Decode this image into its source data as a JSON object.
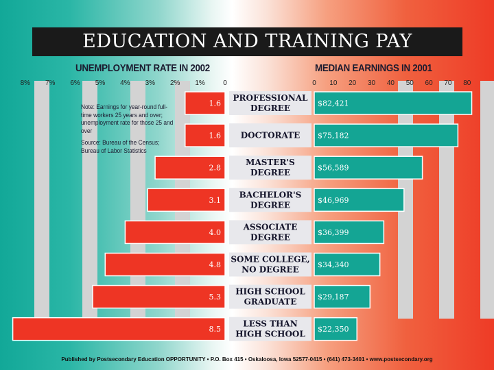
{
  "title": "EDUCATION AND TRAINING PAY",
  "note": {
    "text": "Note: Earnings for year-round full-time workers 25 years and over; unemployment rate for those 25 and over",
    "source": "Source: Bureau of the Census; Bureau of Labor Statistics"
  },
  "footer": "Published by Postsecondary Education OPPORTUNITY • P.O. Box 415 • Oskaloosa, Iowa 52577-0415 • (641) 473-3401 • www.postsecondary.org",
  "colors": {
    "teal": "#14a594",
    "red": "#ee3524",
    "label_box": "#e8e8ec"
  },
  "chart_data": {
    "type": "bar",
    "categories": [
      [
        "PROFESSIONAL",
        "DEGREE"
      ],
      [
        "DOCTORATE"
      ],
      [
        "MASTER'S",
        "DEGREE"
      ],
      [
        "BACHELOR'S",
        "DEGREE"
      ],
      [
        "ASSOCIATE",
        "DEGREE"
      ],
      [
        "SOME COLLEGE,",
        "NO DEGREE"
      ],
      [
        "HIGH SCHOOL",
        "GRADUATE"
      ],
      [
        "LESS THAN",
        "HIGH SCHOOL"
      ]
    ],
    "unemployment": {
      "title": "UNEMPLOYMENT RATE IN 2002",
      "ticks": [
        "8%",
        "7%",
        "6%",
        "5%",
        "4%",
        "3%",
        "2%",
        "1%",
        "0"
      ],
      "range": [
        0,
        8
      ],
      "values": [
        1.6,
        1.6,
        2.8,
        3.1,
        4.0,
        4.8,
        5.3,
        8.5
      ],
      "labels": [
        "1.6",
        "1.6",
        "2.8",
        "3.1",
        "4.0",
        "4.8",
        "5.3",
        "8.5"
      ]
    },
    "earnings": {
      "title": "MEDIAN EARNINGS IN 2001",
      "ticks": [
        "0",
        "10",
        "20",
        "30",
        "40",
        "50",
        "60",
        "70",
        "80"
      ],
      "range": [
        0,
        80
      ],
      "values": [
        82421,
        75182,
        56589,
        46969,
        36399,
        34340,
        29187,
        22350
      ],
      "labels": [
        "$82,421",
        "$75,182",
        "$56,589",
        "$46,969",
        "$36,399",
        "$34,340",
        "$29,187",
        "$22,350"
      ]
    }
  }
}
